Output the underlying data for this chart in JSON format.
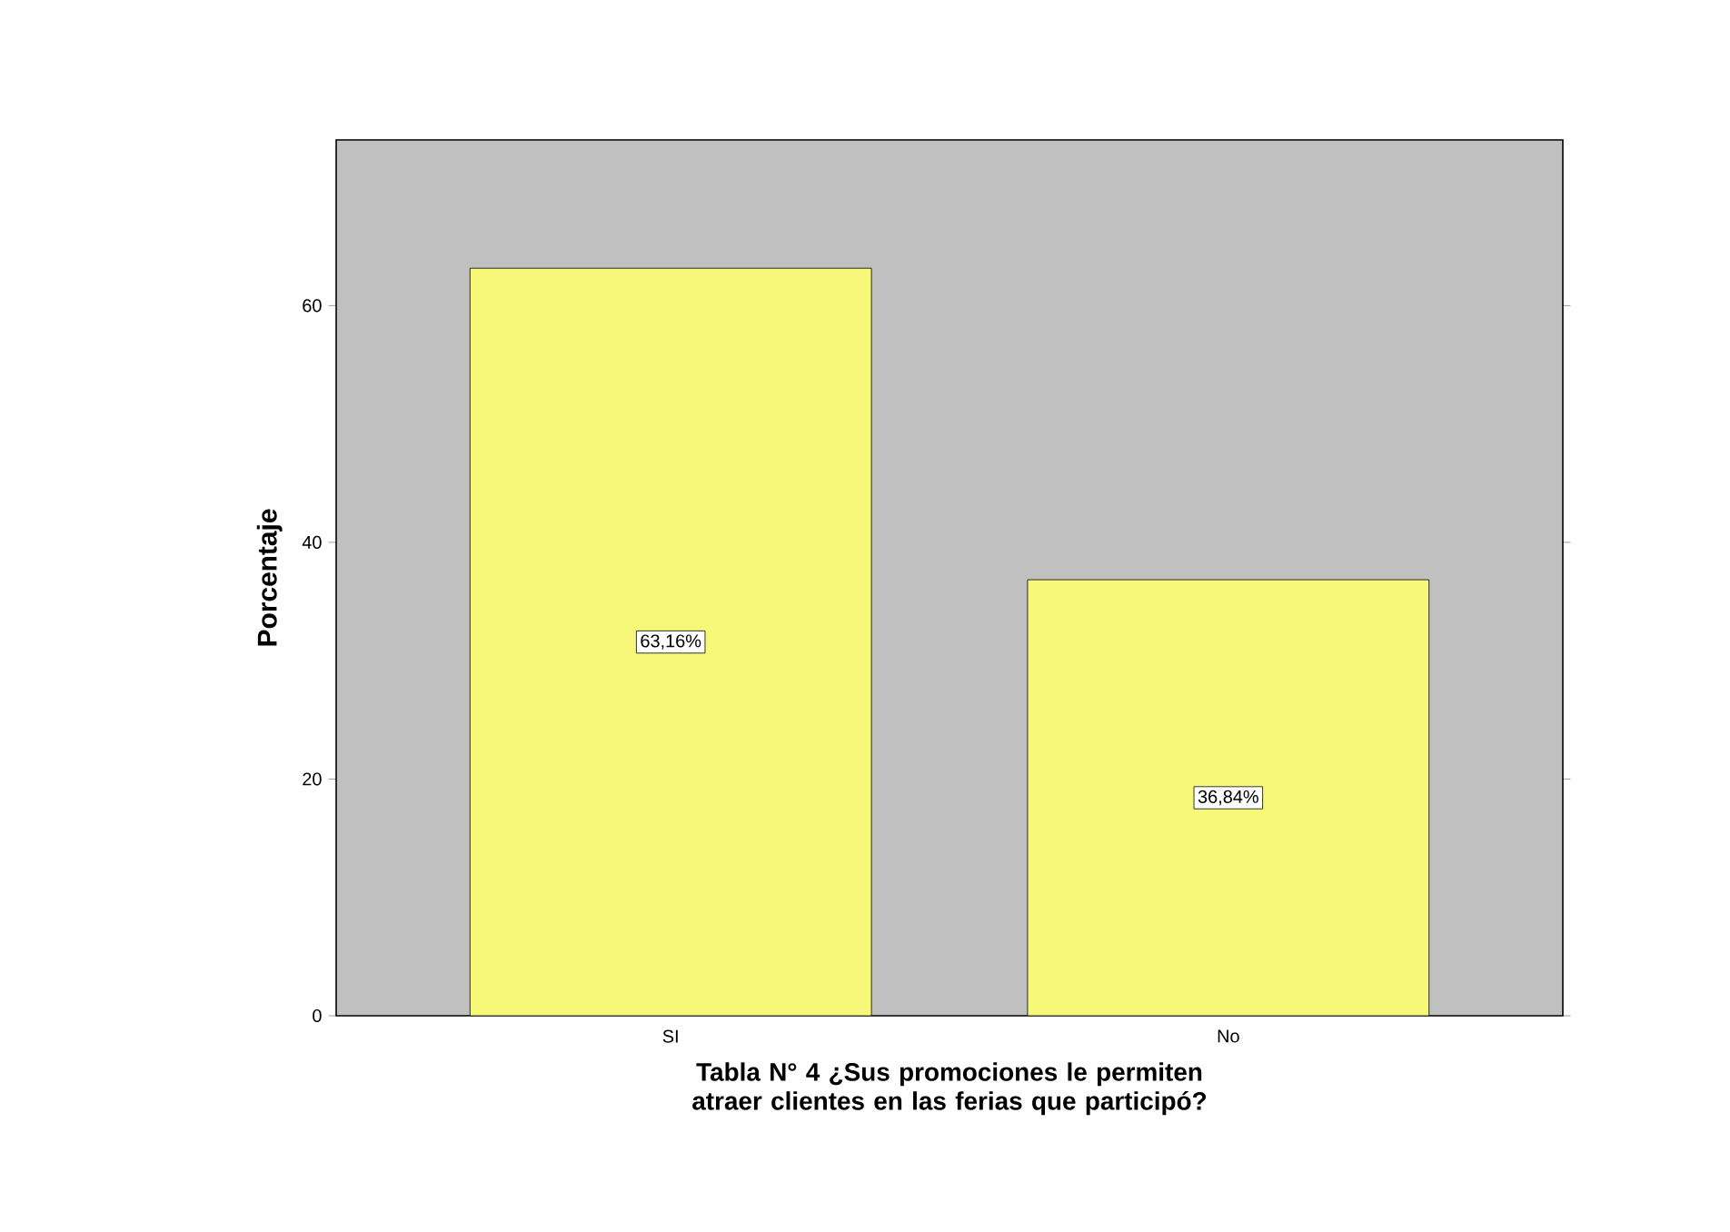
{
  "chart_data": {
    "type": "bar",
    "xlabel": "Tabla N° 4 ¿Sus promociones le permiten atraer clientes en las ferias que participó?",
    "ylabel": "Porcentaje",
    "categories": [
      "SI",
      "No"
    ],
    "values": [
      63.16,
      36.84
    ],
    "value_labels": [
      "63,16%",
      "36,84%"
    ],
    "color": "#f8f878",
    "ylim": [
      0,
      74
    ],
    "yticks": [
      0,
      20,
      40,
      60
    ]
  }
}
